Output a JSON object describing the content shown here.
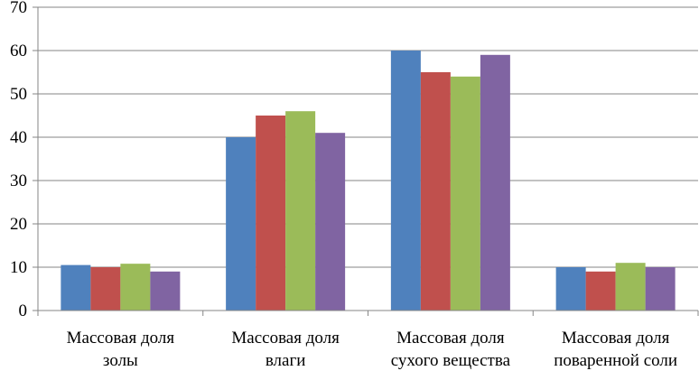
{
  "chart_data": {
    "type": "bar",
    "categories": [
      [
        "Массовая доля",
        "золы"
      ],
      [
        "Массовая доля",
        "влаги"
      ],
      [
        "Массовая доля",
        "сухого вещества"
      ],
      [
        "Массовая доля",
        "поваренной соли"
      ]
    ],
    "series": [
      {
        "values": [
          10.5,
          40,
          60,
          10
        ],
        "color": "#4F81BD"
      },
      {
        "values": [
          10,
          45,
          55,
          9
        ],
        "color": "#C0504D"
      },
      {
        "values": [
          10.8,
          46,
          54,
          11
        ],
        "color": "#9BBB59"
      },
      {
        "values": [
          9,
          41,
          59,
          10
        ],
        "color": "#8064A2"
      }
    ],
    "ylim": [
      0,
      70
    ],
    "yticks": [
      0,
      10,
      20,
      30,
      40,
      50,
      60,
      70
    ],
    "grid": true,
    "legend": "none"
  }
}
